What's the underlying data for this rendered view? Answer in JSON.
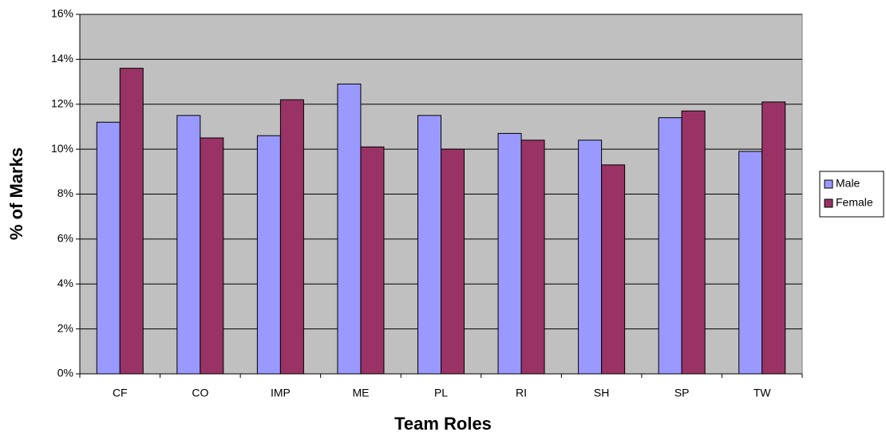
{
  "chart_data": {
    "type": "bar",
    "x_label": "Team Roles",
    "y_label": "% of Marks",
    "categories": [
      "CF",
      "CO",
      "IMP",
      "ME",
      "PL",
      "RI",
      "SH",
      "SP",
      "TW"
    ],
    "series": [
      {
        "name": "Male",
        "color": "#9999ff",
        "values": [
          11.2,
          11.5,
          10.6,
          12.9,
          11.5,
          10.7,
          10.4,
          11.4,
          9.9
        ]
      },
      {
        "name": "Female",
        "color": "#993366",
        "values": [
          13.6,
          10.5,
          12.2,
          10.1,
          10.0,
          10.4,
          9.3,
          11.7,
          12.1
        ]
      }
    ],
    "ylim": [
      0,
      16
    ],
    "yticks": [
      {
        "value": 0,
        "label": "0%"
      },
      {
        "value": 2,
        "label": "2%"
      },
      {
        "value": 4,
        "label": "4%"
      },
      {
        "value": 6,
        "label": "6%"
      },
      {
        "value": 8,
        "label": "8%"
      },
      {
        "value": 10,
        "label": "10%"
      },
      {
        "value": 12,
        "label": "12%"
      },
      {
        "value": 14,
        "label": "14%"
      },
      {
        "value": 16,
        "label": "16%"
      }
    ],
    "grid": true,
    "legend": "right",
    "plot_background": "#c0c0c0"
  }
}
